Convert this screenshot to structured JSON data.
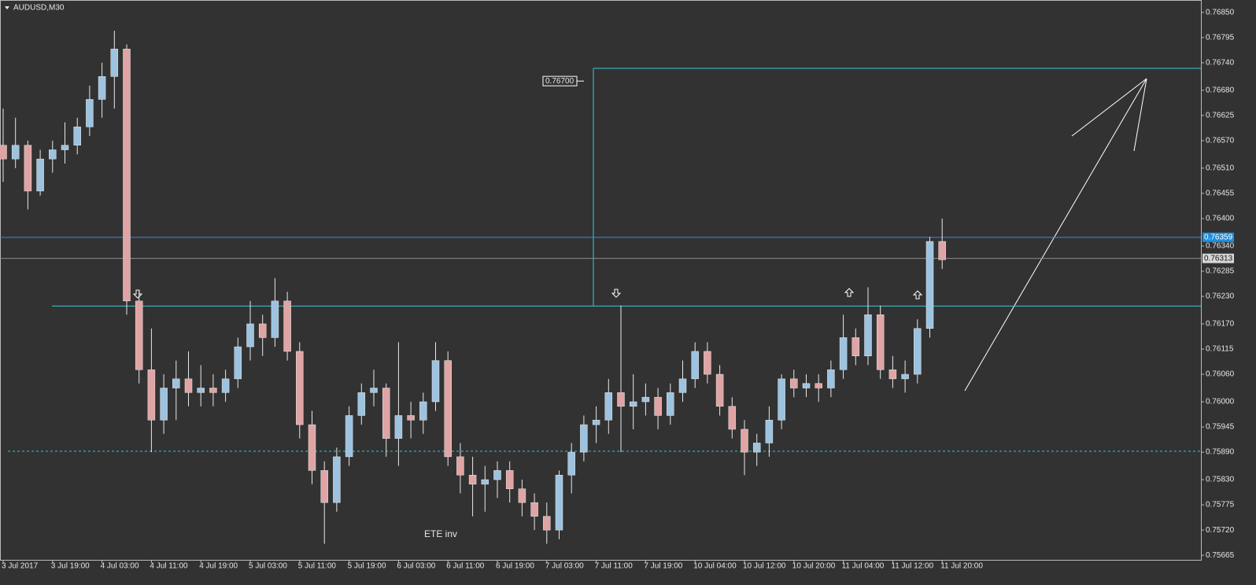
{
  "chart_data": {
    "type": "candlestick",
    "title": "AUDUSD,M30",
    "categories": [
      "3 Jul 2017",
      null,
      null,
      null,
      "3 Jul 19:00",
      null,
      null,
      null,
      "4 Jul 03:00",
      null,
      null,
      null,
      "4 Jul 11:00",
      null,
      null,
      null,
      "4 Jul 19:00",
      null,
      null,
      null,
      "5 Jul 03:00",
      null,
      null,
      null,
      "5 Jul 11:00",
      null,
      null,
      null,
      "5 Jul 19:00",
      null,
      null,
      null,
      "6 Jul 03:00",
      null,
      null,
      null,
      "6 Jul 11:00",
      null,
      null,
      null,
      "6 Jul 19:00",
      null,
      null,
      null,
      "7 Jul 03:00",
      null,
      null,
      null,
      "7 Jul 11:00",
      null,
      null,
      null,
      "7 Jul 19:00",
      null,
      null,
      null,
      "10 Jul 04:00",
      null,
      null,
      null,
      "10 Jul 12:00",
      null,
      null,
      null,
      "10 Jul 20:00",
      null,
      null,
      null,
      "11 Jul 04:00",
      null,
      null,
      null,
      "11 Jul 12:00",
      null,
      null,
      null,
      "11 Jul 20:00"
    ],
    "open": [
      0.7656,
      0.7653,
      0.7656,
      0.7646,
      0.7653,
      0.7655,
      0.7656,
      0.766,
      0.7666,
      0.7671,
      0.7677,
      0.7622,
      0.7607,
      0.7596,
      0.7603,
      0.7605,
      0.7602,
      0.7603,
      0.7602,
      0.7605,
      0.7612,
      0.7617,
      0.7614,
      0.7622,
      0.7611,
      0.7595,
      0.7585,
      0.7578,
      0.7588,
      0.7597,
      0.7602,
      0.7603,
      0.7592,
      0.7597,
      0.7596,
      0.76,
      0.7609,
      0.7588,
      0.7584,
      0.7582,
      0.7583,
      0.7585,
      0.7581,
      0.7578,
      0.7575,
      0.7572,
      0.7584,
      0.7589,
      0.7595,
      0.7596,
      0.7602,
      0.7599,
      0.76,
      0.7601,
      0.7597,
      0.7602,
      0.7605,
      0.7611,
      0.7606,
      0.7599,
      0.7594,
      0.7589,
      0.7591,
      0.7596,
      0.7605,
      0.7603,
      0.7604,
      0.7603,
      0.7607,
      0.7614,
      0.761,
      0.7619,
      0.7607,
      0.7605,
      0.7606,
      0.7616,
      0.7635
    ],
    "high": [
      0.7664,
      0.7662,
      0.7657,
      0.7655,
      0.7657,
      0.7661,
      0.7662,
      0.7669,
      0.7674,
      0.7681,
      0.7678,
      0.7624,
      0.7616,
      0.7606,
      0.7609,
      0.7611,
      0.7608,
      0.7606,
      0.7607,
      0.7614,
      0.7622,
      0.7619,
      0.7627,
      0.7624,
      0.7613,
      0.7598,
      0.7587,
      0.759,
      0.7599,
      0.7604,
      0.7607,
      0.7604,
      0.7613,
      0.76,
      0.7602,
      0.7613,
      0.7611,
      0.7591,
      0.7588,
      0.7586,
      0.7587,
      0.7587,
      0.7583,
      0.758,
      0.7578,
      0.7585,
      0.7591,
      0.7597,
      0.7599,
      0.7605,
      0.7621,
      0.7606,
      0.7604,
      0.7603,
      0.7604,
      0.7609,
      0.7613,
      0.7613,
      0.7608,
      0.7601,
      0.7596,
      0.7593,
      0.7599,
      0.7606,
      0.7607,
      0.7606,
      0.7606,
      0.7609,
      0.7619,
      0.7616,
      0.7625,
      0.7621,
      0.761,
      0.7609,
      0.7618,
      0.7636,
      0.764
    ],
    "low": [
      0.7648,
      0.7651,
      0.7642,
      0.7645,
      0.765,
      0.7652,
      0.7654,
      0.7658,
      0.7662,
      0.7664,
      0.7619,
      0.7604,
      0.7589,
      0.7593,
      0.7596,
      0.7599,
      0.7599,
      0.7599,
      0.76,
      0.7603,
      0.7609,
      0.761,
      0.7612,
      0.7609,
      0.7592,
      0.7582,
      0.7569,
      0.7576,
      0.7586,
      0.7595,
      0.7599,
      0.7588,
      0.7586,
      0.7592,
      0.7593,
      0.7598,
      0.7586,
      0.758,
      0.7575,
      0.7576,
      0.7579,
      0.7578,
      0.7575,
      0.7572,
      0.7569,
      0.757,
      0.758,
      0.7587,
      0.7591,
      0.7593,
      0.7589,
      0.7594,
      0.7597,
      0.7594,
      0.7595,
      0.76,
      0.7603,
      0.7604,
      0.7597,
      0.7592,
      0.7584,
      0.7586,
      0.7588,
      0.7594,
      0.7601,
      0.7601,
      0.76,
      0.7601,
      0.7605,
      0.7608,
      0.7608,
      0.7605,
      0.7603,
      0.7602,
      0.7604,
      0.7614,
      0.7629
    ],
    "close": [
      0.7653,
      0.7656,
      0.7646,
      0.7653,
      0.7655,
      0.7656,
      0.766,
      0.7666,
      0.7671,
      0.7677,
      0.7622,
      0.7607,
      0.7596,
      0.7603,
      0.7605,
      0.7602,
      0.7603,
      0.7602,
      0.7605,
      0.7612,
      0.7617,
      0.7614,
      0.7622,
      0.7611,
      0.7595,
      0.7585,
      0.7578,
      0.7588,
      0.7597,
      0.7602,
      0.7603,
      0.7592,
      0.7597,
      0.7596,
      0.76,
      0.7609,
      0.7588,
      0.7584,
      0.7582,
      0.7583,
      0.7585,
      0.7581,
      0.7578,
      0.7575,
      0.7572,
      0.7584,
      0.7589,
      0.7595,
      0.7596,
      0.7602,
      0.7599,
      0.76,
      0.7601,
      0.7597,
      0.7602,
      0.7605,
      0.7611,
      0.7606,
      0.7599,
      0.7594,
      0.7589,
      0.7591,
      0.7596,
      0.7605,
      0.7603,
      0.7604,
      0.7603,
      0.7607,
      0.7614,
      0.761,
      0.7619,
      0.7607,
      0.7605,
      0.7606,
      0.7616,
      0.7635,
      0.7631
    ],
    "up_color": "#9cc3e0",
    "down_color": "#e0a4a4",
    "wick_color": "#e8e8e8",
    "ylim": [
      0.75655,
      0.76877
    ],
    "yticks": [
      {
        "value": 0.7685,
        "label": "0.76850"
      },
      0.76795,
      {
        "value": 0.7674,
        "label": "0.76740"
      },
      {
        "value": 0.7668,
        "label": "0.76680"
      },
      0.76625,
      {
        "value": 0.7657,
        "label": "0.76570"
      },
      {
        "value": 0.7651,
        "label": "0.76510"
      },
      0.76455,
      {
        "value": 0.764,
        "label": "0.76400"
      },
      {
        "value": 0.7634,
        "label": "0.76340"
      },
      0.76285,
      {
        "value": 0.7623,
        "label": "0.76230"
      },
      {
        "value": 0.7617,
        "label": "0.76170"
      },
      0.76115,
      {
        "value": 0.7606,
        "label": "0.76060"
      },
      {
        "value": 0.76,
        "label": "0.76000"
      },
      0.75945,
      {
        "value": 0.7589,
        "label": "0.75890"
      },
      {
        "value": 0.7583,
        "label": "0.75830"
      },
      0.75775,
      {
        "value": 0.7572,
        "label": "0.75720"
      },
      0.75665
    ],
    "levels": [
      0.76209,
      0.75892,
      0.76728
    ],
    "price_labels": [
      {
        "value": 0.76359,
        "label": "0.76359"
      },
      {
        "value": 0.76313,
        "label": "0.76313"
      }
    ],
    "target": {
      "value": 0.767,
      "label": "0.76700"
    },
    "annotation": "ETE inv"
  }
}
